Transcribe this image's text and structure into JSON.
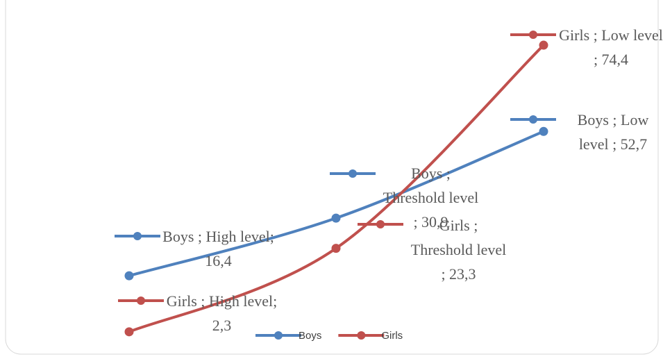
{
  "chart_data": {
    "type": "line",
    "series": [
      {
        "name": "Boys",
        "color": "#4f81bd",
        "values": [
          16.4,
          30.9,
          52.7
        ],
        "value_labels": [
          "Boys ; High level; 16,4",
          "Boys ; Threshold level ; 30,9",
          "Boys ; Low level ; 52,7"
        ]
      },
      {
        "name": "Girls",
        "color": "#c0504d",
        "values": [
          2.3,
          23.3,
          74.4
        ],
        "value_labels": [
          "Girls ; High level; 2,3",
          "Girls ; Threshold level ; 23,3",
          "Girls ; Low level ; 74,4"
        ]
      }
    ],
    "ylim": [
      0,
      80
    ],
    "legend": "bottom"
  }
}
